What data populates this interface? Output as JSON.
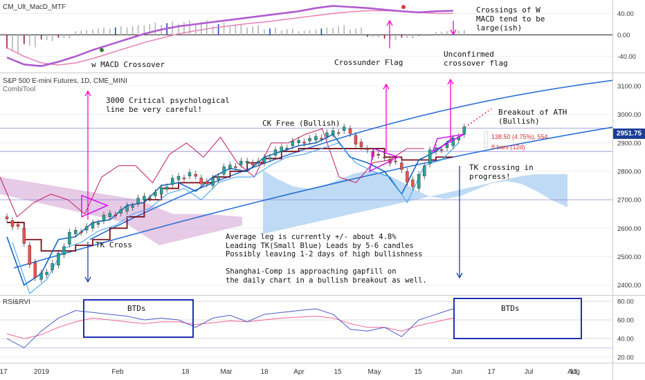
{
  "panes": {
    "macd_title": "CM_Ult_MacD_MTF",
    "main_title": "S&P 500 E-mini Futures, 1D, CME_MINI",
    "main_subtitle": "CombiTool",
    "rsi_title": "RSI&RVI"
  },
  "notes": {
    "macd_crossings": "Crossings of W\nMACD tend to be\nlarge(ish)",
    "w_macd_crossover": "w MACD Crossover",
    "crossunder_flag": "Crossunder Flag",
    "unconfirmed_flag": "Unconfirmed\ncrossover flag",
    "critical_line": "3000 Critical psychological\nline be very careful!",
    "ck_free": "CK Free (Bullish)",
    "breakout_ath": "Breakout of ATH\n(Bullish)",
    "tk_crossing": "TK crossing in\nprogress!",
    "tk_cross": "TK Cross",
    "average_leg": "Average leg is currently +/- about 4.8%\nLeading TK(Small Blue) Leads by 5-6 candles\nPossibly leaving 1-2 days of high bullishness\n\nShanghai-Comp is approaching gapfill on\nthe daily chart in a bullish breakout as well.",
    "btds_left": "BTDs",
    "btds_right": "BTDs"
  },
  "price_tag": "2951.75",
  "measure": {
    "line1": "138.50 (4.75%), 554",
    "line2": "8 bars (12d)"
  },
  "colors": {
    "candle_up": "#26a69a",
    "candle_down": "#ef5350",
    "kijun": "#7a0d18",
    "chikou": "#c2185b",
    "tenkan": "#1565c0",
    "tenkan_leading": "#42a5f5",
    "trend_channel": "#2a6fd6",
    "cloud_bull": "#a9cdf0",
    "cloud_bear": "#dcb4dc",
    "annotation_magenta": "#ff00cc",
    "annotation_blue": "#1a3fb5",
    "macd_purple": "#b05ad0",
    "macd_signal": "#e880b4",
    "rsi_line": "#4a59c7",
    "rvi_line": "#f06292",
    "price_tag_bg": "#1c3f94"
  },
  "chart_data": [
    {
      "type": "line",
      "name": "CM_Ult_MacD_MTF",
      "y_ticks": [
        "40.00",
        "0.00",
        "-40.00"
      ],
      "ylim": [
        -70,
        65
      ],
      "x_dates": [
        "2018-12-17",
        "2018-12-24",
        "2018-12-31",
        "2019-01-07",
        "2019-01-14",
        "2019-01-21",
        "2019-01-28",
        "2019-02-04",
        "2019-02-11",
        "2019-02-18",
        "2019-02-25",
        "2019-03-04",
        "2019-03-11",
        "2019-03-18",
        "2019-03-25",
        "2019-04-01",
        "2019-04-08",
        "2019-04-15",
        "2019-04-22",
        "2019-04-29",
        "2019-05-06",
        "2019-05-13",
        "2019-05-20",
        "2019-05-27",
        "2019-06-03",
        "2019-06-10",
        "2019-06-17"
      ],
      "series": [
        {
          "values": [
            -42,
            -55,
            -58,
            -50,
            -40,
            -28,
            -18,
            -8,
            2,
            10,
            16,
            20,
            24,
            28,
            32,
            36,
            40,
            44,
            50,
            54,
            52,
            50,
            47,
            44,
            42,
            44,
            45
          ]
        },
        {
          "values": [
            -24,
            -40,
            -52,
            -56,
            -52,
            -44,
            -34,
            -24,
            -14,
            -6,
            2,
            8,
            13,
            17,
            21,
            24,
            28,
            32,
            36,
            40,
            43,
            45,
            45,
            44,
            42,
            40,
            40
          ]
        }
      ],
      "histogram": [
        -30,
        -20,
        -10,
        -6,
        8,
        12,
        14,
        16,
        20,
        22,
        24,
        24,
        20,
        18,
        16,
        12,
        10,
        8,
        12,
        16,
        12,
        -4,
        -8,
        -6,
        -2,
        6,
        8
      ]
    },
    {
      "type": "line",
      "name": "S&P 500 E-mini Futures",
      "y_ticks": [
        "3100.00",
        "3000.00",
        "2900.00",
        "2800.00",
        "2700.00",
        "2600.00",
        "2500.00",
        "2400.00"
      ],
      "ylim": [
        2365,
        3145
      ],
      "x_ticks": [
        "17",
        "2019",
        "Feb",
        "18",
        "Mar",
        "18",
        "Apr",
        "15",
        "May",
        "15",
        "Jun",
        "17",
        "Jul",
        "15",
        "Aug"
      ],
      "x_dates": [
        "2018-12-17",
        "2018-12-24",
        "2018-12-31",
        "2019-01-07",
        "2019-01-14",
        "2019-01-21",
        "2019-01-28",
        "2019-02-04",
        "2019-02-11",
        "2019-02-18",
        "2019-02-25",
        "2019-03-04",
        "2019-03-11",
        "2019-03-18",
        "2019-03-25",
        "2019-04-01",
        "2019-04-08",
        "2019-04-15",
        "2019-04-22",
        "2019-04-29",
        "2019-05-06",
        "2019-05-13",
        "2019-05-20",
        "2019-05-27",
        "2019-06-03",
        "2019-06-10",
        "2019-06-17"
      ],
      "close": [
        2600,
        2420,
        2470,
        2580,
        2600,
        2640,
        2660,
        2700,
        2720,
        2770,
        2790,
        2750,
        2810,
        2830,
        2830,
        2870,
        2900,
        2910,
        2930,
        2950,
        2880,
        2850,
        2830,
        2740,
        2870,
        2890,
        2950
      ],
      "kijun": [
        2620,
        2560,
        2520,
        2520,
        2540,
        2560,
        2600,
        2640,
        2700,
        2740,
        2760,
        2760,
        2780,
        2800,
        2830,
        2845,
        2870,
        2880,
        2880,
        2880,
        2880,
        2880,
        2850,
        2840,
        2840,
        2850,
        2850
      ],
      "last_price": 2951.75
    },
    {
      "type": "line",
      "name": "RSI&RVI",
      "y_ticks": [
        "80.00",
        "60.00",
        "40.00",
        "20.00"
      ],
      "ylim": [
        14,
        86
      ],
      "series": [
        {
          "values": [
            40,
            30,
            48,
            62,
            70,
            68,
            66,
            64,
            60,
            62,
            60,
            52,
            62,
            65,
            58,
            66,
            68,
            70,
            72,
            66,
            50,
            48,
            52,
            42,
            60,
            66,
            72
          ]
        },
        {
          "values": [
            45,
            40,
            44,
            52,
            58,
            62,
            60,
            58,
            56,
            58,
            58,
            55,
            57,
            59,
            58,
            60,
            62,
            63,
            64,
            62,
            56,
            52,
            52,
            48,
            54,
            58,
            62
          ]
        }
      ]
    }
  ]
}
